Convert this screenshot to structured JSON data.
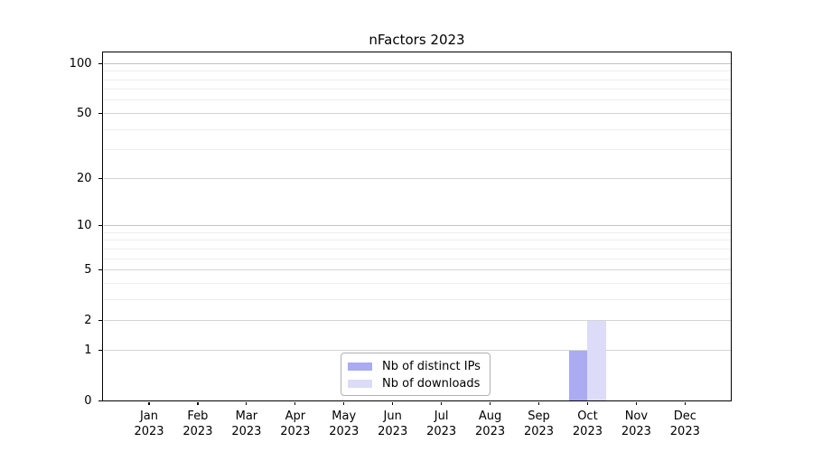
{
  "title": "nFactors 2023",
  "chart_data": {
    "type": "bar",
    "title": "nFactors 2023",
    "categories": [
      "Jan 2023",
      "Feb 2023",
      "Mar 2023",
      "Apr 2023",
      "May 2023",
      "Jun 2023",
      "Jul 2023",
      "Aug 2023",
      "Sep 2023",
      "Oct 2023",
      "Nov 2023",
      "Dec 2023"
    ],
    "series": [
      {
        "name": "Nb of distinct IPs",
        "color": "#aaabf3",
        "values": [
          0,
          0,
          0,
          0,
          0,
          0,
          0,
          0,
          0,
          1,
          0,
          0
        ]
      },
      {
        "name": "Nb of downloads",
        "color": "#dcdcf8",
        "values": [
          0,
          0,
          0,
          0,
          0,
          0,
          0,
          0,
          0,
          2,
          0,
          0
        ]
      }
    ],
    "yscale": "log10(1+y)",
    "ylim": [
      0,
      117
    ],
    "y_major_ticks": [
      0,
      1,
      2,
      5,
      10,
      20,
      50,
      100
    ],
    "y_minor_ticks": [
      3,
      4,
      6,
      7,
      8,
      9,
      30,
      40,
      60,
      70,
      80,
      90
    ],
    "xlabel": "",
    "ylabel": "",
    "grid": "both",
    "legend": {
      "position": "lower-center-inside",
      "entries": [
        "Nb of distinct IPs",
        "Nb of downloads"
      ]
    }
  },
  "colors": {
    "bar_distinct_ips": "#aaabf3",
    "bar_downloads": "#dcdcf8",
    "grid_major": "#d4d4d4",
    "grid_major_dark": "#c3c3c3",
    "grid_minor": "#ededed",
    "axis": "#000000",
    "text": "#000000",
    "legend_border": "#b0b0b0",
    "background": "#ffffff"
  }
}
